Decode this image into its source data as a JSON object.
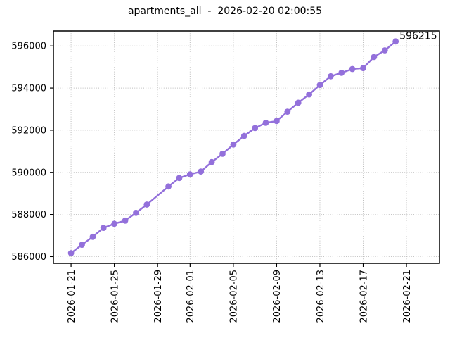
{
  "chart_data": {
    "type": "line",
    "title": "apartments_all  -  2026-02-20 02:00:55",
    "series_name": "apartments_all",
    "xlabel": "",
    "ylabel": "",
    "x_start": "2026-01-21",
    "x": [
      "2026-01-21",
      "2026-01-22",
      "2026-01-23",
      "2026-01-24",
      "2026-01-25",
      "2026-01-26",
      "2026-01-27",
      "2026-01-28",
      "2026-01-30",
      "2026-01-31",
      "2026-02-01",
      "2026-02-02",
      "2026-02-03",
      "2026-02-04",
      "2026-02-05",
      "2026-02-06",
      "2026-02-07",
      "2026-02-08",
      "2026-02-09",
      "2026-02-10",
      "2026-02-11",
      "2026-02-12",
      "2026-02-13",
      "2026-02-14",
      "2026-02-15",
      "2026-02-16",
      "2026-02-17",
      "2026-02-18",
      "2026-02-19",
      "2026-02-20"
    ],
    "values": [
      586165,
      586560,
      586940,
      587365,
      587560,
      587710,
      588075,
      588470,
      589330,
      589730,
      589905,
      590040,
      590485,
      590880,
      591320,
      591730,
      592100,
      592350,
      592435,
      592880,
      593305,
      593700,
      594145,
      594560,
      594725,
      594905,
      594950,
      595475,
      595790,
      596215
    ],
    "x_ticks": [
      "2026-01-21",
      "2026-01-25",
      "2026-01-29",
      "2026-02-01",
      "2026-02-05",
      "2026-02-09",
      "2026-02-13",
      "2026-02-17",
      "2026-02-21"
    ],
    "y_ticks": [
      586000,
      588000,
      590000,
      592000,
      594000,
      596000
    ],
    "ylim": [
      585680,
      596710
    ],
    "xlim_days": [
      -1.63,
      34.05
    ],
    "grid": true,
    "legend": "none",
    "annotation": {
      "text": "596215",
      "date": "2026-02-20",
      "value": 596215
    },
    "line_color": "#9370DB",
    "grid_color": "#bdbdbd",
    "spine_color": "#000000",
    "marker": "circle"
  }
}
